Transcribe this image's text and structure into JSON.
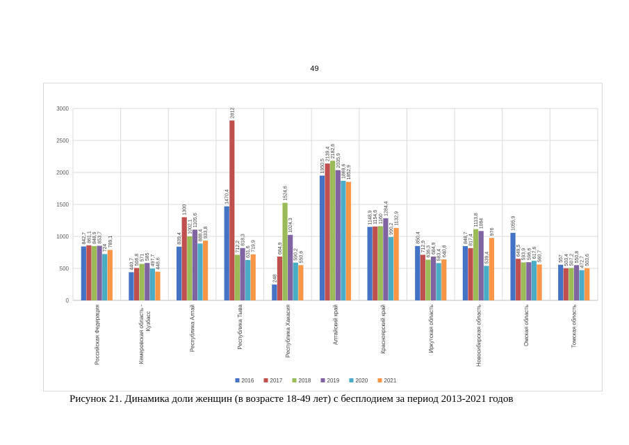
{
  "page": {
    "number": "49"
  },
  "caption": "Рисунок 21. Динамика доли женщин (в возрасте 18-49 лет) с бесплодием за период 2013-2021 годов",
  "chart_data": {
    "type": "bar",
    "title": "",
    "xlabel": "",
    "ylabel": "",
    "ylim": [
      0,
      3000
    ],
    "yticks": [
      0,
      500,
      1000,
      1500,
      2000,
      2500,
      3000
    ],
    "grid": true,
    "legend_position": "bottom",
    "categories": [
      [
        "Российская Федерация"
      ],
      [
        "Кемеровская область -",
        "Кузбасс"
      ],
      [
        "Республика Алтай"
      ],
      [
        "Республика Тыва"
      ],
      [
        "Республика Хакасия"
      ],
      [
        "Алтайский край"
      ],
      [
        "Красноярский край"
      ],
      [
        "Иркутская область"
      ],
      [
        "Новосибирская область"
      ],
      [
        "Омская область"
      ],
      [
        "Томская область"
      ]
    ],
    "series": [
      {
        "name": "2016",
        "color": "#4472c4",
        "values": [
          842.7,
          440.7,
          839.4,
          1470.4,
          248,
          1950.5,
          1148.9,
          850.4,
          848.7,
          1055.9,
          557
        ],
        "labels": [
          "842,7",
          "440,7",
          "839,4",
          "1470,4",
          "248",
          "1950,5",
          "1148,9",
          "850,4",
          "848,7",
          "1055,9",
          "557"
        ]
      },
      {
        "name": "2017",
        "color": "#c0504d",
        "values": [
          861.1,
          506.8,
          1300,
          2812,
          684.9,
          2139.4,
          1154.6,
          712.9,
          817.4,
          649.5,
          503.4
        ],
        "labels": [
          "861,1",
          "506,8",
          "1300",
          "2812",
          "684,9",
          "2139,4",
          "1154,6",
          "712,9",
          "817,4",
          "649,5",
          "503,4"
        ]
      },
      {
        "name": "2018",
        "color": "#9bbb59",
        "values": [
          848.9,
          571,
          1002.1,
          712.2,
          1524.6,
          2182.6,
          1160,
          636.3,
          1113.8,
          593.9,
          507.2
        ],
        "labels": [
          "848,9",
          "571",
          "1002,1",
          "712,2",
          "1524,6",
          "2182,6",
          "1160",
          "636,3",
          "1113,8",
          "593,9",
          "507,2"
        ]
      },
      {
        "name": "2019",
        "color": "#8064a2",
        "values": [
          853.7,
          585,
          1105.6,
          818.3,
          1024.3,
          2035.9,
          1284.4,
          684.9,
          1084,
          596.6,
          550.8
        ],
        "labels": [
          "853,7",
          "585",
          "1105,6",
          "818,3",
          "1024,3",
          "2035,9",
          "1284,4",
          "684,9",
          "1084",
          "596,6",
          "550,8"
        ]
      },
      {
        "name": "2020",
        "color": "#4bacc6",
        "values": [
          724,
          497.7,
          888.4,
          631.6,
          590.2,
          1869.6,
          990.2,
          583.4,
          539.4,
          617.6,
          472.7
        ],
        "labels": [
          "724",
          "497,7",
          "888,4",
          "631,6",
          "590,2",
          "1869,6",
          "990,2",
          "583,4",
          "539,4",
          "617,6",
          "472,7"
        ]
      },
      {
        "name": "2021",
        "color": "#f79646",
        "values": [
          789.1,
          448.6,
          933.8,
          719.9,
          550.6,
          1852.9,
          1132.9,
          640.8,
          976,
          560.7,
          503.6
        ],
        "labels": [
          "789,1",
          "448,6",
          "933,8",
          "719,9",
          "550,6",
          "1852,9",
          "1132,9",
          "640,8",
          "976",
          "560,7",
          "503,6"
        ]
      }
    ]
  }
}
